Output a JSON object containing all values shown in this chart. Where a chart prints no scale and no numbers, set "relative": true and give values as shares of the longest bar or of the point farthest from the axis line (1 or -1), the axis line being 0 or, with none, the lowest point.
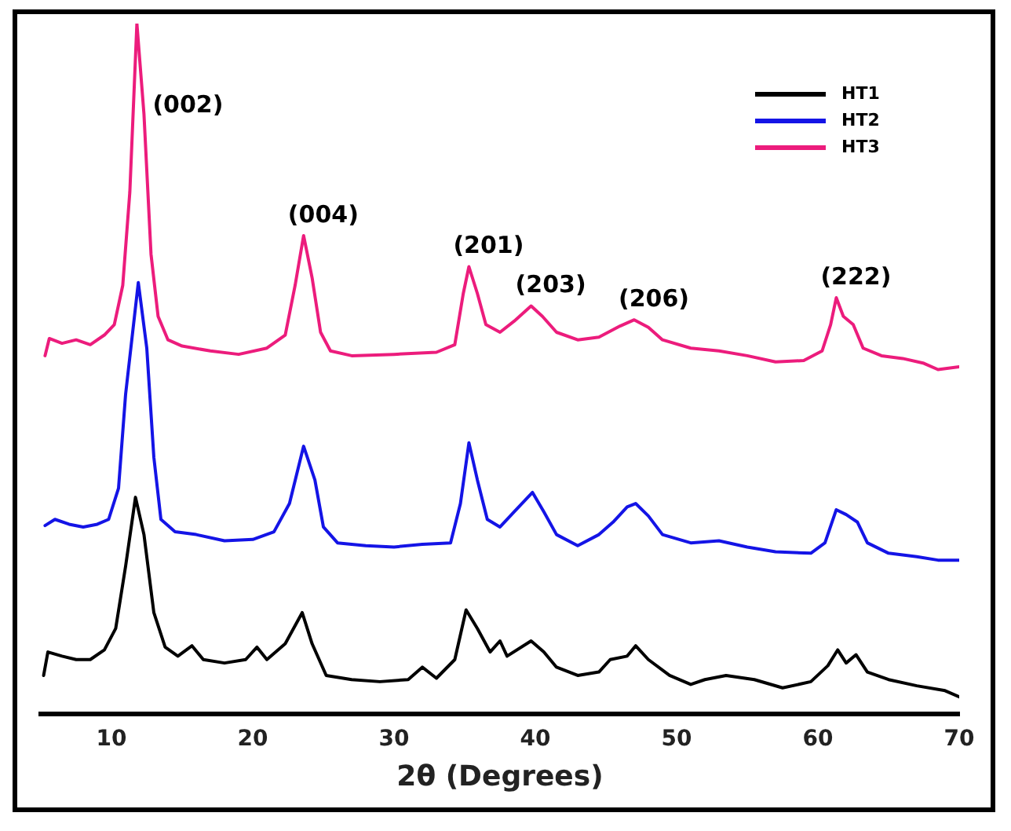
{
  "chart_data": {
    "type": "line",
    "relative": true,
    "xlabel": "2θ (Degrees)",
    "xlim": [
      5,
      70
    ],
    "xticks": [
      10,
      20,
      30,
      40,
      50,
      60,
      70
    ],
    "grid": false,
    "legend": "top right",
    "marker": "none",
    "line_style": "solid",
    "annotations": [
      {
        "text": "(002)",
        "x": 11.8,
        "y": 1
      },
      {
        "text": "(004)",
        "x": 23.6,
        "y": 0.693
      },
      {
        "text": "(201)",
        "x": 35.3,
        "y": 0.648
      },
      {
        "text": "(203)",
        "x": 39.7,
        "y": 0.591
      },
      {
        "text": "(206)",
        "x": 47,
        "y": 0.571
      },
      {
        "text": "(222)",
        "x": 61.3,
        "y": 0.603
      }
    ],
    "series": [
      {
        "name": "HT1",
        "color": "#000000",
        "x": [
          5.2,
          5.5,
          6.5,
          7.5,
          8.5,
          9.5,
          10.3,
          11,
          11.7,
          12.3,
          13,
          13.8,
          14.7,
          15.7,
          16.5,
          18,
          19.5,
          20.3,
          21,
          22.3,
          23.5,
          24.2,
          25.2,
          27,
          29,
          31,
          32,
          33,
          34.3,
          35.1,
          35.9,
          36.8,
          37.5,
          38,
          39.7,
          40.6,
          41.5,
          43,
          44.5,
          45.3,
          46.5,
          47.1,
          48,
          49.5,
          51,
          52,
          53.5,
          55.5,
          57.5,
          59.5,
          60.7,
          61.4,
          62,
          62.7,
          63.5,
          65,
          67,
          69,
          70
        ],
        "values": [
          0.056,
          0.09,
          0.084,
          0.079,
          0.079,
          0.093,
          0.124,
          0.214,
          0.314,
          0.26,
          0.147,
          0.097,
          0.084,
          0.099,
          0.079,
          0.074,
          0.079,
          0.097,
          0.079,
          0.102,
          0.147,
          0.102,
          0.056,
          0.05,
          0.047,
          0.05,
          0.068,
          0.052,
          0.079,
          0.151,
          0.124,
          0.09,
          0.106,
          0.084,
          0.106,
          0.09,
          0.068,
          0.056,
          0.061,
          0.079,
          0.084,
          0.099,
          0.079,
          0.056,
          0.043,
          0.05,
          0.056,
          0.05,
          0.038,
          0.047,
          0.07,
          0.093,
          0.074,
          0.086,
          0.061,
          0.05,
          0.041,
          0.034,
          0.025
        ]
      },
      {
        "name": "HT2",
        "color": "#1414e6",
        "x": [
          5.3,
          6,
          7,
          8,
          9,
          9.8,
          10.5,
          11,
          11.9,
          12.5,
          13,
          13.5,
          14.5,
          16,
          18,
          20,
          21.5,
          22.6,
          23.6,
          24.4,
          25,
          26,
          28,
          30,
          32,
          34,
          34.7,
          35.3,
          35.9,
          36.6,
          37.5,
          38.5,
          39.8,
          40.6,
          41.5,
          43,
          44.5,
          45.5,
          46.5,
          47.1,
          48,
          49,
          51,
          53,
          55,
          57,
          59.5,
          60.5,
          61.3,
          62,
          62.8,
          63.5,
          65,
          67,
          68.5,
          70
        ],
        "values": [
          0.273,
          0.282,
          0.275,
          0.271,
          0.275,
          0.282,
          0.327,
          0.463,
          0.625,
          0.53,
          0.372,
          0.282,
          0.264,
          0.26,
          0.251,
          0.253,
          0.264,
          0.305,
          0.388,
          0.339,
          0.271,
          0.248,
          0.244,
          0.242,
          0.246,
          0.248,
          0.305,
          0.393,
          0.339,
          0.282,
          0.271,
          0.293,
          0.321,
          0.293,
          0.26,
          0.244,
          0.26,
          0.278,
          0.3,
          0.305,
          0.287,
          0.26,
          0.248,
          0.251,
          0.242,
          0.235,
          0.233,
          0.248,
          0.296,
          0.289,
          0.278,
          0.248,
          0.233,
          0.228,
          0.223,
          0.223
        ]
      },
      {
        "name": "HT3",
        "color": "#ec1c7c",
        "x": [
          5.3,
          5.6,
          6.5,
          7.5,
          8.5,
          9.5,
          10.2,
          10.8,
          11.3,
          11.8,
          12.3,
          12.8,
          13.3,
          14,
          15,
          17,
          19,
          21,
          22.3,
          23,
          23.6,
          24.2,
          24.8,
          25.5,
          27,
          30,
          33,
          34.3,
          34.9,
          35.3,
          35.9,
          36.5,
          37.5,
          38.5,
          39.7,
          40.5,
          41.5,
          43,
          44.5,
          46,
          47,
          48,
          49,
          51,
          53,
          55,
          57,
          59,
          60.3,
          60.9,
          61.3,
          61.8,
          62.5,
          63.2,
          64.5,
          66,
          67.5,
          68.5,
          70
        ],
        "values": [
          0.519,
          0.544,
          0.537,
          0.542,
          0.535,
          0.549,
          0.564,
          0.621,
          0.756,
          1,
          0.869,
          0.666,
          0.576,
          0.542,
          0.533,
          0.526,
          0.521,
          0.53,
          0.549,
          0.621,
          0.693,
          0.632,
          0.553,
          0.526,
          0.519,
          0.521,
          0.524,
          0.535,
          0.609,
          0.648,
          0.609,
          0.564,
          0.553,
          0.569,
          0.591,
          0.576,
          0.553,
          0.542,
          0.546,
          0.562,
          0.571,
          0.56,
          0.542,
          0.53,
          0.526,
          0.519,
          0.51,
          0.512,
          0.526,
          0.564,
          0.603,
          0.576,
          0.564,
          0.53,
          0.519,
          0.515,
          0.508,
          0.499,
          0.503
        ]
      }
    ]
  }
}
